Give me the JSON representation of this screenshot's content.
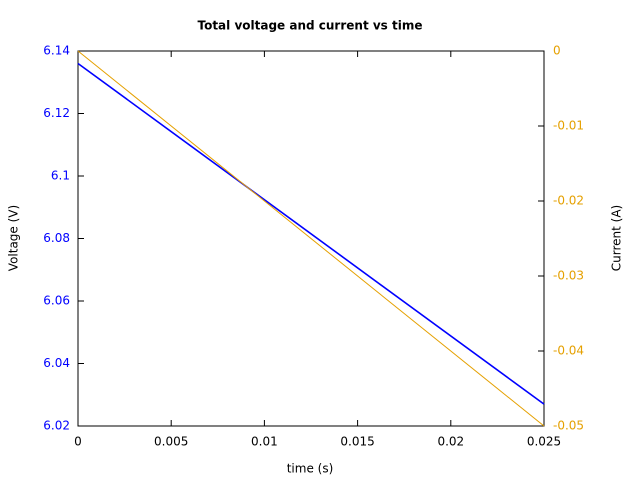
{
  "chart_data": {
    "type": "line",
    "title": "Total voltage and current vs time",
    "xlabel": "time (s)",
    "ylabel": "Voltage (V)",
    "y2label": "Current (A)",
    "x": [
      0,
      0.025
    ],
    "series": [
      {
        "name": "Voltage",
        "color": "#0000ff",
        "values": [
          6.136,
          6.027
        ]
      },
      {
        "name": "Current",
        "color": "#e5a000",
        "values": [
          0,
          -0.05
        ],
        "axis": "y2"
      }
    ],
    "xlim": [
      0,
      0.025
    ],
    "xticks": [
      0,
      0.005,
      0.01,
      0.015,
      0.02,
      0.025
    ],
    "ylim": [
      6.02,
      6.14
    ],
    "yticks": [
      6.02,
      6.04,
      6.06,
      6.08,
      6.1,
      6.12,
      6.14
    ],
    "y2lim": [
      -0.05,
      0
    ],
    "y2ticks": [
      -0.05,
      -0.04,
      -0.03,
      -0.02,
      -0.01,
      0
    ]
  }
}
